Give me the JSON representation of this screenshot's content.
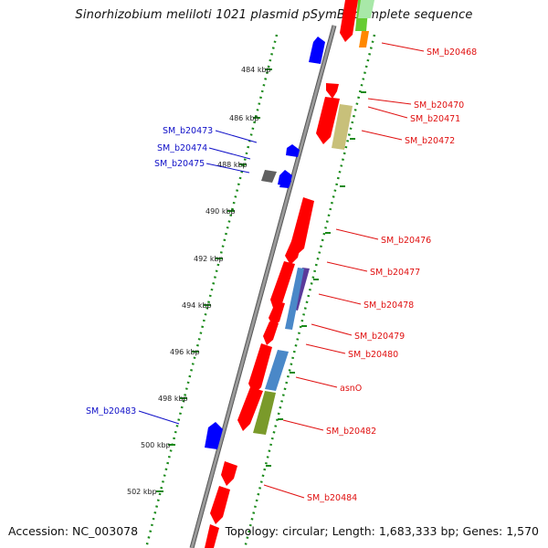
{
  "title": "Sinorhizobium meliloti 1021 plasmid pSymB, complete sequence",
  "footer": {
    "accession": "Accession: NC_003078",
    "topology": "Topology: circular; Length: 1,683,333 bp; Genes: 1,570"
  },
  "scale_labels": [
    "484 kbp",
    "486 kbp",
    "488 kbp",
    "490 kbp",
    "492 kbp",
    "494 kbp",
    "496 kbp",
    "498 kbp",
    "500 kbp",
    "502 kbp"
  ],
  "forward_labels": [
    "SM_b20473",
    "SM_b20474",
    "SM_b20475",
    "SM_b20483"
  ],
  "reverse_labels": [
    "SM_b20468",
    "SM_b20470",
    "SM_b20471",
    "SM_b20472",
    "SM_b20476",
    "SM_b20477",
    "SM_b20478",
    "SM_b20479",
    "SM_b20480",
    "asnO",
    "SM_b20482",
    "SM_b20484"
  ],
  "colors": {
    "reverse_gene": "#ff0000",
    "forward_gene": "#0000ff",
    "pseudo_gene": "#606060",
    "backbone": "#808080",
    "tick_dots": "#1a8a1a",
    "label_red": "#e01010",
    "label_blue": "#1010c8"
  }
}
